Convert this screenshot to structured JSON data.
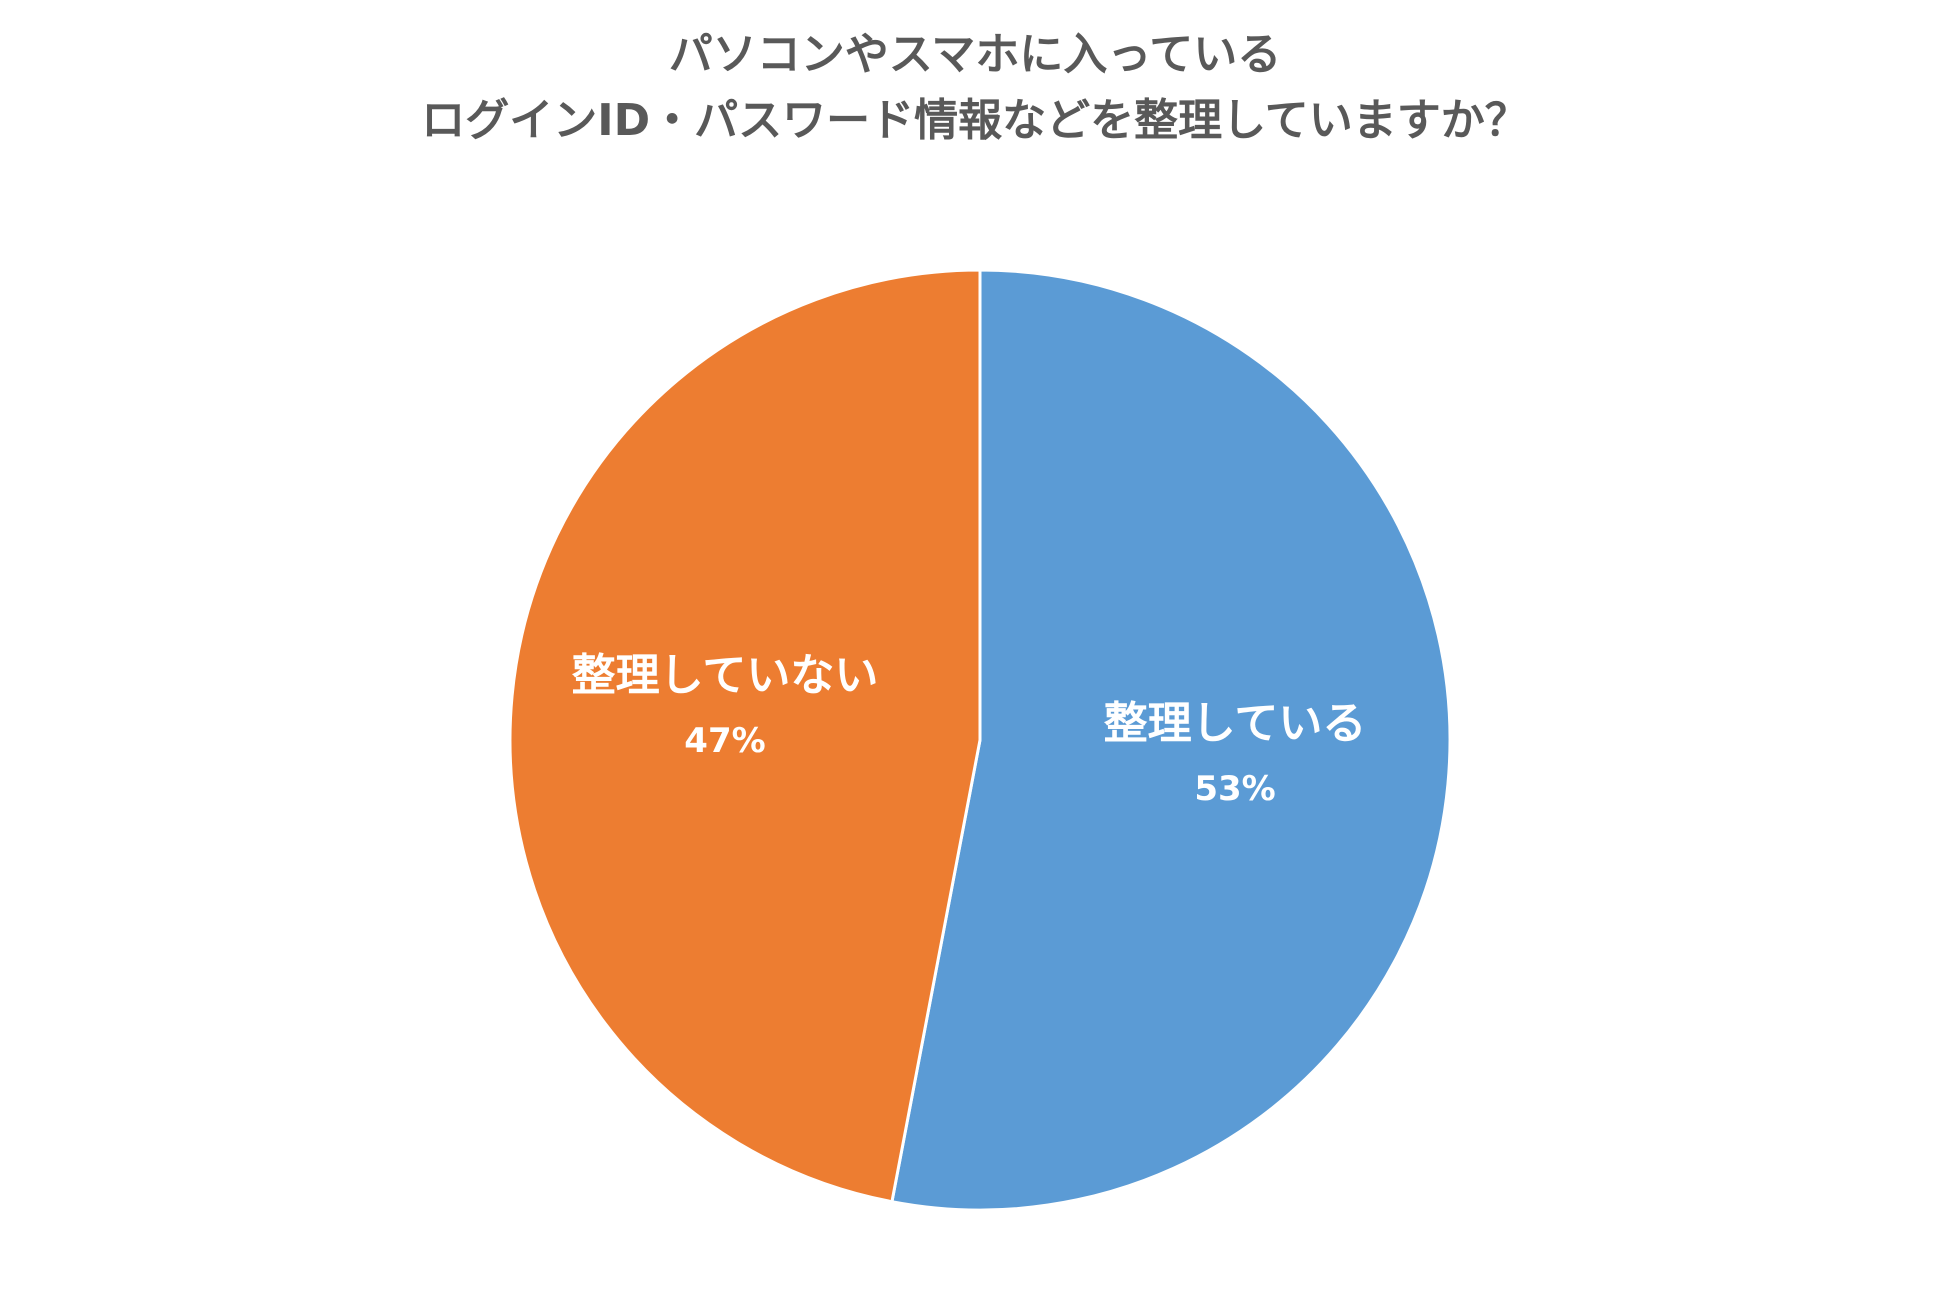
{
  "chart_data": {
    "type": "pie",
    "title_lines": [
      "パソコンやスマホに入っている",
      "ログインID・パスワード情報などを整理していますか？"
    ],
    "start_angle_deg": 0,
    "direction": "clockwise",
    "slices": [
      {
        "label": "整理している",
        "value": 53,
        "value_label": "53%",
        "color": "#5B9BD5"
      },
      {
        "label": "整理していない",
        "value": 47,
        "value_label": "47%",
        "color": "#ED7D31"
      }
    ],
    "legend": "none",
    "data_labels": "inside"
  }
}
